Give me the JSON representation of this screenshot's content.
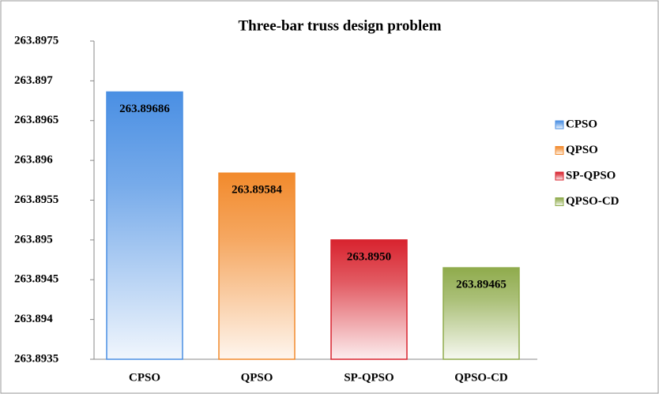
{
  "chart_data": {
    "type": "bar",
    "title": "Three-bar truss design problem",
    "categories": [
      "CPSO",
      "QPSO",
      "SP-QPSO",
      "QPSO-CD"
    ],
    "values": [
      263.89686,
      263.89584,
      263.895,
      263.89465
    ],
    "value_labels": [
      "263.89686",
      "263.89584",
      "263.8950",
      "263.89465"
    ],
    "colors": [
      "#4a8fe3",
      "#f28a2c",
      "#d8232e",
      "#8fab4c"
    ],
    "ylim": [
      263.8935,
      263.8975
    ],
    "yticks": [
      263.8935,
      263.894,
      263.8945,
      263.895,
      263.8955,
      263.896,
      263.8965,
      263.897,
      263.8975
    ],
    "legend": "right"
  }
}
